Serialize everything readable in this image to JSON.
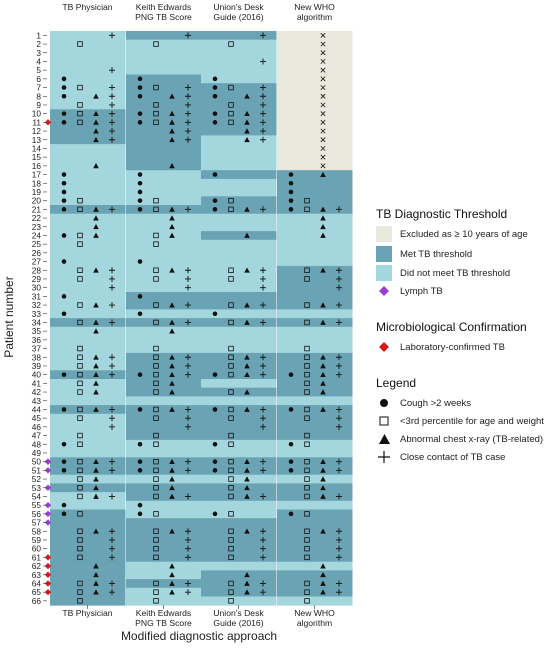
{
  "colors": {
    "excluded": "#e9e8dc",
    "met": "#6aa3b4",
    "not_met": "#a4d6de",
    "lymph": "#9a3dd1",
    "lab": "#d7191c",
    "symbol": "#111111"
  },
  "legend": {
    "threshold_title": "TB Diagnostic Threshold",
    "excluded_label": "Excluded as ≥ 10 years of age",
    "met_label": "Met TB threshold",
    "not_met_label": "Did not meet TB threshold",
    "lymph_label": "Lymph TB",
    "micro_title": "Microbiological Confirmation",
    "lab_label": "Laboratory-confirmed TB",
    "legend_title": "Legend",
    "cough_label": "Cough >2 weeks",
    "weight_label": "<3rd percentile for age and weight",
    "xray_label": "Abnormal chest x-ray (TB-related)",
    "contact_label": "Close contact of TB case"
  },
  "chart_data": {
    "type": "heatmap",
    "xlabel": "Modified diagnostic approach",
    "ylabel": "Patient number",
    "approaches": [
      "TB Physician",
      "Keith Edwards PNG TB Score",
      "Union's Desk Guide (2016)",
      "New WHO algorithm"
    ],
    "approach_labels": [
      [
        "TB Physician"
      ],
      [
        "Keith Edwards",
        "PNG TB Score"
      ],
      [
        "Union's Desk",
        "Guide (2016)"
      ],
      [
        "New WHO",
        "algorithm"
      ]
    ],
    "patients": [
      1,
      2,
      3,
      4,
      5,
      6,
      7,
      8,
      9,
      10,
      11,
      12,
      13,
      14,
      15,
      16,
      17,
      18,
      19,
      20,
      21,
      22,
      23,
      24,
      25,
      26,
      27,
      28,
      29,
      30,
      31,
      32,
      33,
      34,
      35,
      36,
      37,
      38,
      39,
      40,
      41,
      42,
      43,
      44,
      45,
      46,
      47,
      48,
      49,
      50,
      51,
      52,
      53,
      54,
      55,
      56,
      57,
      58,
      59,
      60,
      61,
      62,
      63,
      64,
      65,
      66
    ],
    "status_codes": {
      "E": "Excluded as ≥ 10 years of age",
      "M": "Met TB threshold",
      "N": "Did not meet TB threshold"
    },
    "status": [
      [
        "N",
        "M",
        "M",
        "E"
      ],
      [
        "N",
        "N",
        "N",
        "E"
      ],
      [
        "N",
        "N",
        "N",
        "E"
      ],
      [
        "N",
        "N",
        "N",
        "E"
      ],
      [
        "N",
        "N",
        "N",
        "E"
      ],
      [
        "N",
        "M",
        "N",
        "E"
      ],
      [
        "N",
        "M",
        "M",
        "E"
      ],
      [
        "N",
        "M",
        "M",
        "E"
      ],
      [
        "N",
        "M",
        "M",
        "E"
      ],
      [
        "M",
        "M",
        "M",
        "E"
      ],
      [
        "M",
        "M",
        "M",
        "E"
      ],
      [
        "M",
        "M",
        "M",
        "E"
      ],
      [
        "M",
        "M",
        "N",
        "E"
      ],
      [
        "N",
        "M",
        "N",
        "E"
      ],
      [
        "N",
        "M",
        "N",
        "E"
      ],
      [
        "N",
        "M",
        "N",
        "E"
      ],
      [
        "N",
        "N",
        "M",
        "M"
      ],
      [
        "N",
        "N",
        "N",
        "M"
      ],
      [
        "N",
        "N",
        "N",
        "M"
      ],
      [
        "N",
        "N",
        "M",
        "M"
      ],
      [
        "M",
        "M",
        "M",
        "M"
      ],
      [
        "N",
        "N",
        "N",
        "N"
      ],
      [
        "N",
        "N",
        "N",
        "N"
      ],
      [
        "N",
        "N",
        "M",
        "N"
      ],
      [
        "N",
        "N",
        "N",
        "N"
      ],
      [
        "N",
        "N",
        "N",
        "N"
      ],
      [
        "N",
        "N",
        "N",
        "N"
      ],
      [
        "N",
        "N",
        "N",
        "M"
      ],
      [
        "N",
        "N",
        "N",
        "M"
      ],
      [
        "N",
        "N",
        "N",
        "M"
      ],
      [
        "N",
        "M",
        "M",
        "M"
      ],
      [
        "N",
        "M",
        "M",
        "M"
      ],
      [
        "N",
        "N",
        "N",
        "N"
      ],
      [
        "M",
        "M",
        "M",
        "M"
      ],
      [
        "N",
        "N",
        "N",
        "N"
      ],
      [
        "N",
        "N",
        "N",
        "N"
      ],
      [
        "N",
        "N",
        "N",
        "N"
      ],
      [
        "N",
        "M",
        "M",
        "M"
      ],
      [
        "N",
        "M",
        "M",
        "M"
      ],
      [
        "M",
        "M",
        "M",
        "M"
      ],
      [
        "N",
        "M",
        "N",
        "M"
      ],
      [
        "N",
        "M",
        "M",
        "M"
      ],
      [
        "N",
        "N",
        "N",
        "N"
      ],
      [
        "M",
        "M",
        "M",
        "M"
      ],
      [
        "N",
        "M",
        "M",
        "M"
      ],
      [
        "N",
        "M",
        "M",
        "M"
      ],
      [
        "N",
        "M",
        "M",
        "M"
      ],
      [
        "N",
        "N",
        "N",
        "N"
      ],
      [
        "N",
        "N",
        "N",
        "N"
      ],
      [
        "M",
        "M",
        "M",
        "M"
      ],
      [
        "M",
        "M",
        "M",
        "M"
      ],
      [
        "N",
        "N",
        "N",
        "N"
      ],
      [
        "M",
        "M",
        "M",
        "M"
      ],
      [
        "N",
        "M",
        "M",
        "M"
      ],
      [
        "N",
        "N",
        "N",
        "N"
      ],
      [
        "M",
        "N",
        "N",
        "M"
      ],
      [
        "M",
        "M",
        "M",
        "M"
      ],
      [
        "M",
        "M",
        "M",
        "M"
      ],
      [
        "M",
        "M",
        "M",
        "M"
      ],
      [
        "M",
        "M",
        "M",
        "M"
      ],
      [
        "M",
        "M",
        "M",
        "M"
      ],
      [
        "M",
        "N",
        "N",
        "N"
      ],
      [
        "M",
        "N",
        "M",
        "M"
      ],
      [
        "M",
        "M",
        "M",
        "M"
      ],
      [
        "M",
        "N",
        "M",
        "M"
      ],
      [
        "M",
        "N",
        "N",
        "N"
      ]
    ],
    "symbols": [
      "---+",
      "-o--",
      "o--",
      "--+",
      "---+",
      "c---",
      "co-+",
      "cox+",
      "co-+",
      "coxo+",
      "coxo+",
      "-x+",
      "-x+",
      "---",
      "---",
      "-x-",
      "c---",
      "c---",
      "c---",
      "co--",
      "cox+",
      "-x--",
      "-x--",
      "cox-",
      "-o--",
      "----",
      "c---",
      "-ox+",
      "-o-+",
      "---+",
      "c---",
      "-ox+",
      "c---",
      "-ox+",
      "-x--",
      "----",
      "-o--",
      "cox+",
      "-ox+",
      "cox+",
      "cox-",
      "cox-",
      "----",
      "cox+",
      "-o-+",
      "---+",
      "-o--",
      "co--",
      "----",
      "cox+",
      "cox+",
      "cox-",
      "cox-",
      "cox+",
      "c---",
      "co--",
      "----",
      "cox+",
      "co-+",
      "co-+",
      "co-+",
      "-x--",
      "-x--",
      "cox+",
      "cox+",
      "-o--"
    ],
    "symbol_keys": {
      "c": "Cough >2 weeks",
      "o": "<3rd percentile for age and weight",
      "x": "Abnormal chest x-ray (TB-related)",
      "+": "Close contact of TB case"
    },
    "patient_symbols": [
      [
        "+",
        "o",
        "",
        "",
        "+",
        "c",
        "co+",
        "cx+",
        "o+",
        "cox+",
        "cox+",
        "x+",
        "x+",
        "",
        "",
        "x",
        "c",
        "c",
        "c",
        "co",
        "cox+",
        "x",
        "x",
        "cox",
        "o",
        "",
        "c",
        "ox+",
        "o+",
        "+",
        "c",
        "ox+",
        "c",
        "ox+",
        "x",
        "",
        "o",
        "ox+",
        "ox+",
        "cox+",
        "ox",
        "ox",
        "",
        "cox+",
        "o+",
        "+",
        "o",
        "co",
        "",
        "cox+",
        "cox+",
        "ox",
        "ox",
        "ox+",
        "c",
        "co",
        "",
        "ox+",
        "o+",
        "o+",
        "o+",
        "x",
        "x",
        "ox+",
        "ox+",
        "o"
      ],
      [
        "+",
        "o",
        "",
        "",
        "",
        "c",
        "co+",
        "cx+",
        "o+",
        "cox+",
        "cox+",
        "x+",
        "x+",
        "",
        "",
        "x",
        "c",
        "c",
        "c",
        "co",
        "cox+",
        "x",
        "x",
        "ox",
        "o",
        "",
        "c",
        "ox+",
        "o+",
        "+",
        "c",
        "ox+",
        "c",
        "ox+",
        "x",
        "",
        "o",
        "ox+",
        "ox+",
        "cox+",
        "ox",
        "ox",
        "",
        "cox+",
        "o+",
        "+",
        "o",
        "co",
        "",
        "cox+",
        "cox+",
        "ox",
        "ox",
        "ox+",
        "c",
        "co",
        "",
        "ox+",
        "o+",
        "o+",
        "o+",
        "x",
        "x",
        "ox+",
        "ox+",
        "o"
      ],
      [
        "+",
        "o",
        "",
        "+",
        "",
        "c",
        "co+",
        "cx+",
        "o+",
        "cox+",
        "cox+",
        "x+",
        "x+",
        "",
        "",
        "",
        "c",
        "",
        "",
        "co",
        "cox+",
        "",
        "",
        "x",
        "",
        "",
        "",
        "ox+",
        "o+",
        "+",
        "",
        "ox+",
        "c",
        "ox+",
        "",
        "",
        "o",
        "ox+",
        "ox+",
        "cox+",
        "",
        "ox",
        "",
        "cox+",
        "o+",
        "+",
        "o",
        "co",
        "",
        "cox+",
        "cox+",
        "ox",
        "ox",
        "ox+",
        "",
        "co",
        "",
        "ox+",
        "o+",
        "o+",
        "o+",
        "",
        "x",
        "ox+",
        "ox+",
        "o"
      ],
      [
        "x",
        "x",
        "x",
        "x",
        "x",
        "x",
        "x",
        "x",
        "x",
        "x",
        "x",
        "x",
        "x",
        "x",
        "x",
        "x",
        "cx",
        "c",
        "c",
        "co",
        "cox+",
        "x",
        "x",
        "x",
        "",
        "",
        "",
        "ox+",
        "o+",
        "+",
        "",
        "ox+",
        "",
        "ox+",
        "",
        "",
        "o",
        "ox+",
        "ox+",
        "cox+",
        "ox",
        "ox",
        "",
        "cox+",
        "o+",
        "+",
        "o",
        "co",
        "",
        "cox+",
        "cox+",
        "ox",
        "ox",
        "ox+",
        "",
        "co",
        "",
        "ox+",
        "o+",
        "o+",
        "o+",
        "x",
        "x",
        "ox+",
        "ox+",
        "o"
      ]
    ],
    "lymph_tb": [
      50,
      51,
      53,
      55,
      56,
      57
    ],
    "lab_confirmed": [
      11,
      50,
      61,
      62,
      63,
      64,
      65
    ]
  }
}
